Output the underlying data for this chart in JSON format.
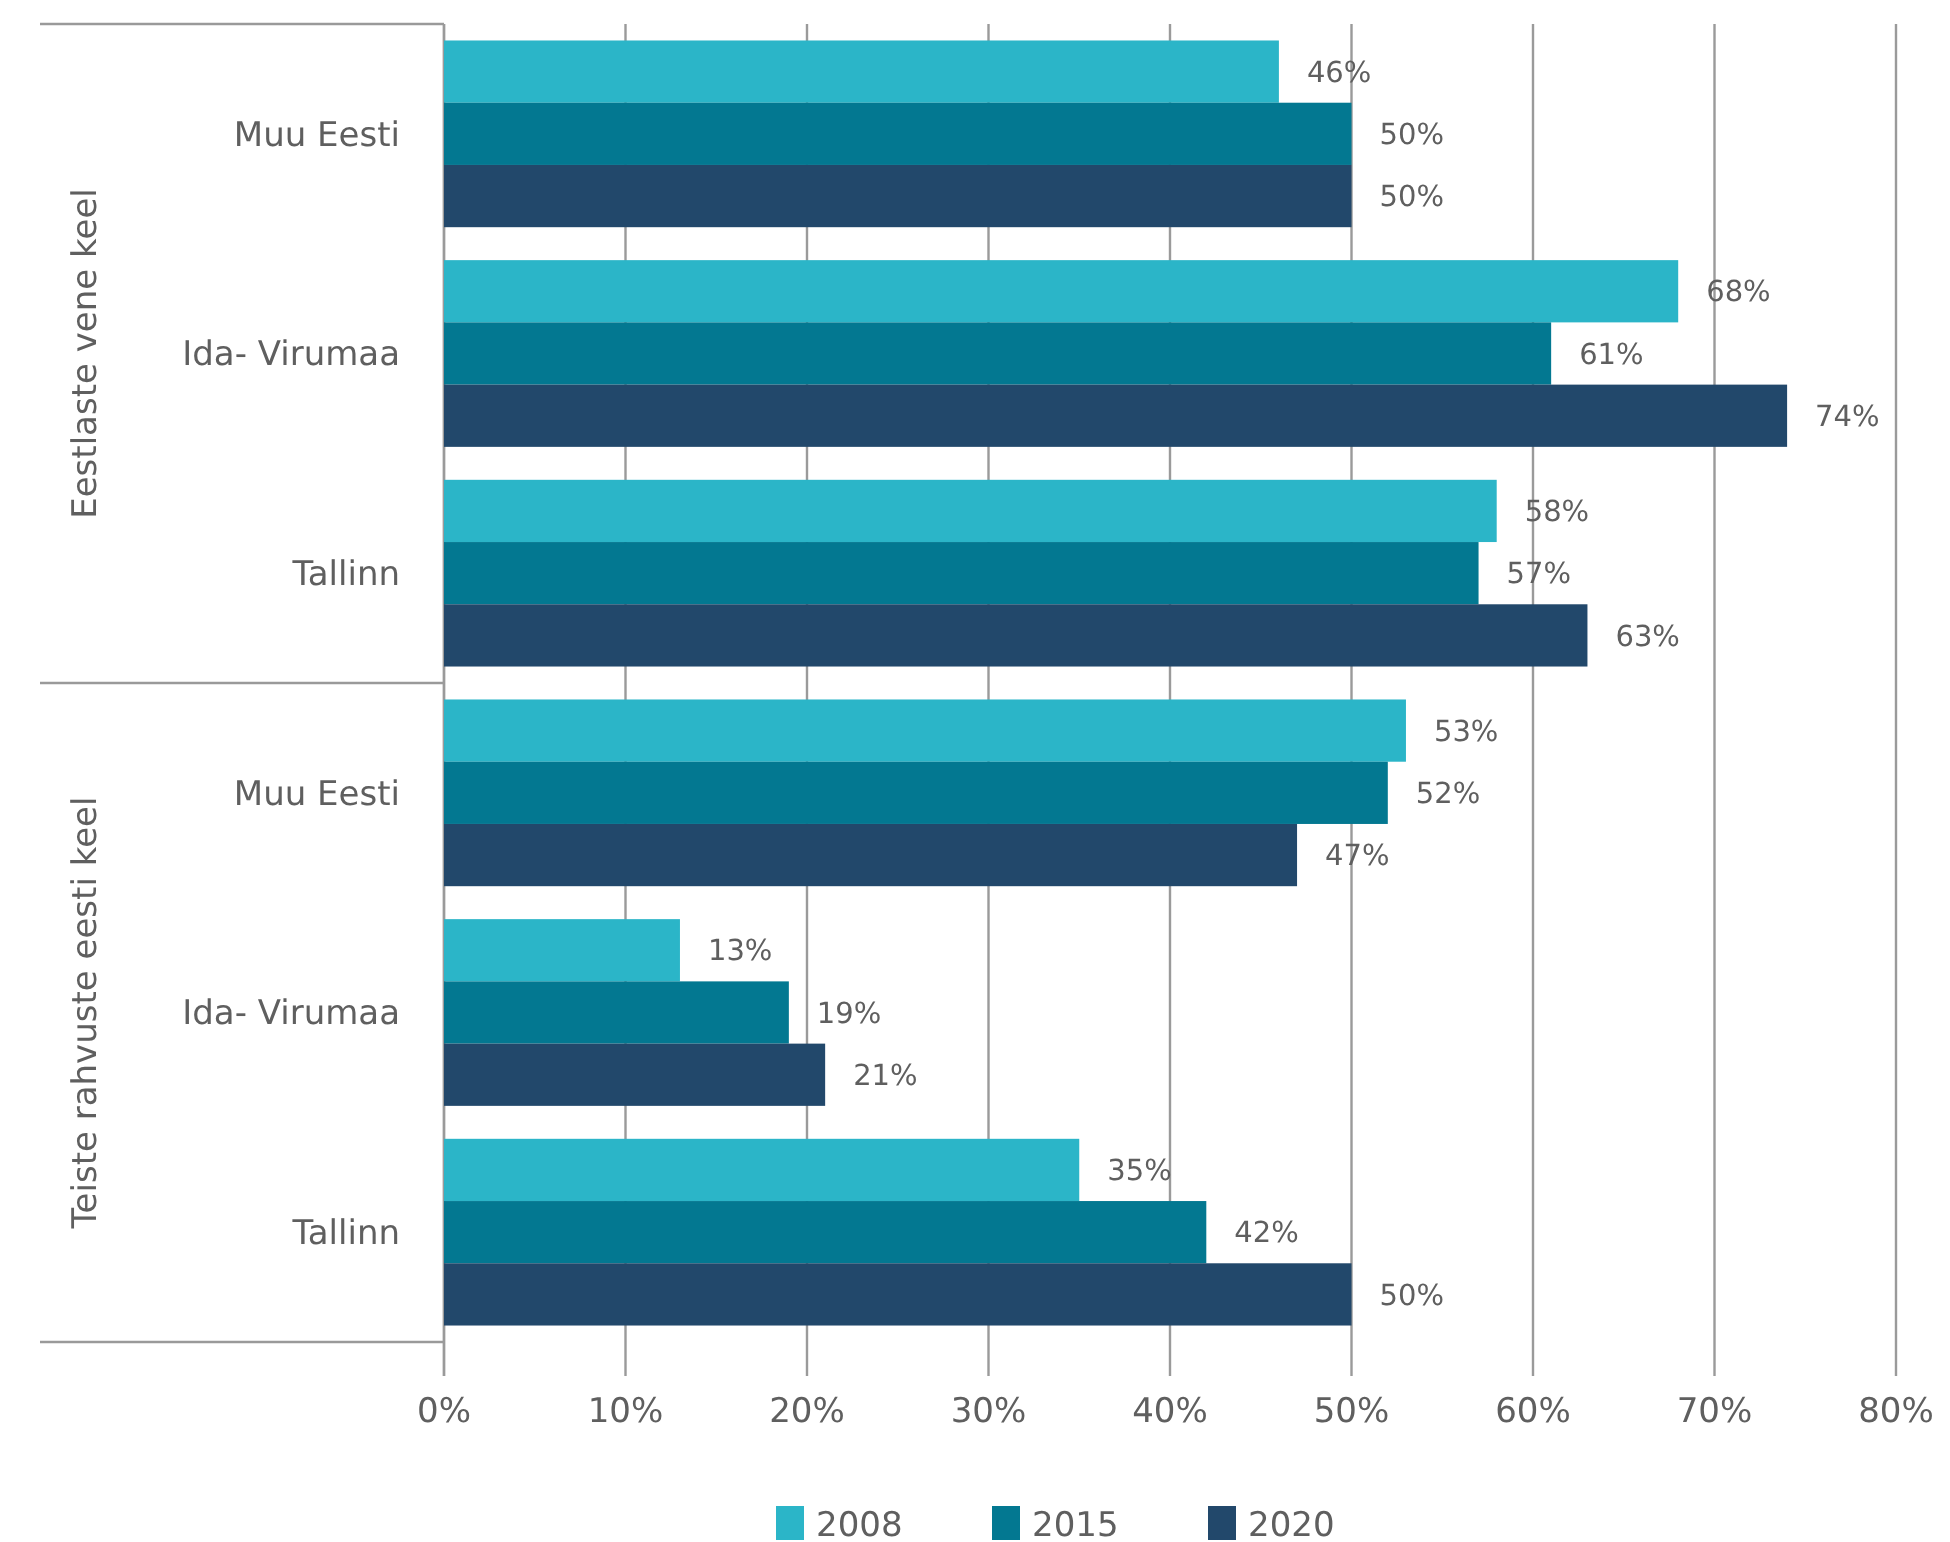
{
  "chart_data": {
    "type": "bar",
    "orientation": "horizontal",
    "categories": [
      "Muu Eesti",
      "Ida- Virumaa",
      "Tallinn",
      "Muu Eesti",
      "Ida- Virumaa",
      "Tallinn"
    ],
    "annotations": [
      "Eestlaste vene keel",
      "Teiste rahvuste eesti keel"
    ],
    "series": [
      {
        "name": "2008",
        "color": "#2bb5c8",
        "values": [
          46,
          68,
          58,
          53,
          13,
          35
        ],
        "value_labels": [
          "46%",
          "68%",
          "58%",
          "53%",
          "13%",
          "35%"
        ]
      },
      {
        "name": "2015",
        "color": "#037891",
        "values": [
          50,
          61,
          57,
          52,
          19,
          42
        ],
        "value_labels": [
          "50%",
          "61%",
          "57%",
          "52%",
          "19%",
          "42%"
        ]
      },
      {
        "name": "2020",
        "color": "#22486b",
        "values": [
          50,
          74,
          63,
          47,
          21,
          50
        ],
        "value_labels": [
          "50%",
          "74%",
          "63%",
          "47%",
          "21%",
          "50%"
        ]
      }
    ],
    "xlim": [
      0,
      80
    ],
    "xticks": [
      {
        "value": 0,
        "label": "0%"
      },
      {
        "value": 10,
        "label": "10%"
      },
      {
        "value": 20,
        "label": "20%"
      },
      {
        "value": 30,
        "label": "30%"
      },
      {
        "value": 40,
        "label": "40%"
      },
      {
        "value": 50,
        "label": "50%"
      },
      {
        "value": 60,
        "label": "60%"
      },
      {
        "value": 70,
        "label": "70%"
      },
      {
        "value": 80,
        "label": "80%"
      }
    ],
    "grid": "x",
    "legend": "bottom"
  }
}
